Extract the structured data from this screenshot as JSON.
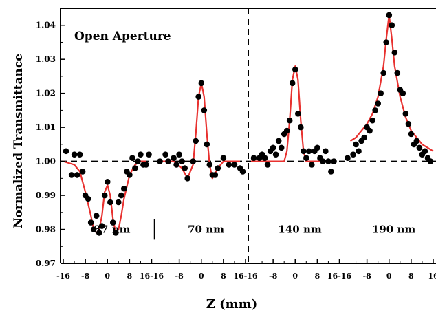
{
  "chart_data": {
    "type": "scatter",
    "title": "Open Aperture",
    "xlabel": "Z (mm)",
    "ylabel": "Normalized Transmittance",
    "ylim": [
      0.97,
      1.045
    ],
    "y_ticks": [
      "0.97",
      "0.98",
      "0.99",
      "1.00",
      "1.01",
      "1.02",
      "1.03",
      "1.04"
    ],
    "x_tick_labels": [
      "-16",
      "-8",
      "0",
      "8",
      "16-16",
      "-8",
      "0",
      "8",
      "16-16",
      "-8",
      "0",
      "8",
      "16-16",
      "-8",
      "0",
      "8",
      "16"
    ],
    "reference_line_y": 1.0,
    "marker_color": "#000000",
    "fit_color": "#e8312f",
    "panels": [
      {
        "name": "37 nm",
        "x": [
          -15,
          -13,
          -12,
          -11,
          -10,
          -9,
          -8,
          -7,
          -6,
          -5,
          -4,
          -3,
          -2,
          -1,
          0,
          1,
          2,
          3,
          4,
          5,
          6,
          7,
          8,
          9,
          10,
          11,
          12,
          13,
          14,
          15
        ],
        "y": [
          1.003,
          0.996,
          1.002,
          0.996,
          1.002,
          0.997,
          0.99,
          0.989,
          0.982,
          0.98,
          0.984,
          0.979,
          0.981,
          0.99,
          0.994,
          0.988,
          0.982,
          0.979,
          0.988,
          0.99,
          0.992,
          0.997,
          0.996,
          1.001,
          0.998,
          1.0,
          1.002,
          0.999,
          0.999,
          1.002
        ],
        "fit_x": [
          -16,
          -12,
          -10,
          -8,
          -6,
          -5,
          -4,
          -3,
          -2,
          -1,
          0,
          1,
          2,
          3,
          4,
          5,
          6,
          8,
          10,
          12,
          14
        ],
        "fit_y": [
          1.0,
          0.999,
          0.997,
          0.991,
          0.984,
          0.98,
          0.979,
          0.98,
          0.984,
          0.991,
          0.993,
          0.99,
          0.983,
          0.979,
          0.98,
          0.984,
          0.989,
          0.996,
          0.999,
          1.0,
          1.0
        ]
      },
      {
        "name": "70 nm",
        "x": [
          -15,
          -13,
          -12,
          -10,
          -9,
          -8,
          -7,
          -6,
          -5,
          -3,
          -2,
          -1,
          0,
          1,
          2,
          3,
          4,
          5,
          6,
          8,
          10,
          12,
          14,
          15
        ],
        "y": [
          1.0,
          1.002,
          1.0,
          1.001,
          0.999,
          1.002,
          1.0,
          0.998,
          0.995,
          1.0,
          1.006,
          1.019,
          1.023,
          1.015,
          1.005,
          0.999,
          0.996,
          0.996,
          0.998,
          1.001,
          0.999,
          0.999,
          0.998,
          0.997
        ],
        "fit_x": [
          -15,
          -10,
          -7,
          -5,
          -3,
          -2,
          -1,
          0,
          1,
          2,
          3,
          4,
          6,
          8,
          10,
          14
        ],
        "fit_y": [
          1.0,
          1.0,
          0.998,
          0.995,
          0.999,
          1.008,
          1.019,
          1.023,
          1.019,
          1.008,
          0.999,
          0.995,
          0.998,
          1.0,
          1.0,
          1.0
        ]
      },
      {
        "name": "140 nm",
        "x": [
          -15,
          -13,
          -12,
          -11,
          -10,
          -9,
          -8,
          -7,
          -6,
          -5,
          -4,
          -3,
          -2,
          -1,
          0,
          1,
          2,
          3,
          4,
          5,
          6,
          7,
          8,
          9,
          10,
          11,
          12,
          13,
          14
        ],
        "y": [
          1.001,
          1.001,
          1.002,
          1.001,
          0.999,
          1.003,
          1.004,
          1.002,
          1.006,
          1.004,
          1.008,
          1.009,
          1.012,
          1.023,
          1.027,
          1.014,
          1.01,
          1.003,
          1.001,
          1.003,
          0.999,
          1.003,
          1.004,
          1.001,
          1.0,
          1.003,
          1.0,
          0.997,
          1.0
        ],
        "fit_x": [
          -16,
          -8,
          -4,
          -3,
          -2,
          -1,
          0,
          1,
          2,
          3,
          4,
          8,
          12
        ],
        "fit_y": [
          1.0,
          1.0,
          1.0,
          1.003,
          1.012,
          1.024,
          1.028,
          1.024,
          1.012,
          1.003,
          1.0,
          1.0,
          1.0
        ]
      },
      {
        "name": "190 nm",
        "x": [
          -15,
          -13,
          -12,
          -11,
          -10,
          -9,
          -8,
          -7,
          -6,
          -5,
          -4,
          -3,
          -2,
          -1,
          0,
          1,
          2,
          3,
          4,
          5,
          6,
          7,
          8,
          9,
          10,
          11,
          12,
          13,
          14,
          15
        ],
        "y": [
          1.001,
          1.002,
          1.005,
          1.003,
          1.006,
          1.007,
          1.01,
          1.009,
          1.012,
          1.015,
          1.017,
          1.02,
          1.026,
          1.035,
          1.043,
          1.04,
          1.032,
          1.026,
          1.021,
          1.02,
          1.014,
          1.011,
          1.008,
          1.005,
          1.006,
          1.004,
          1.002,
          1.003,
          1.001,
          1.0
        ],
        "fit_x": [
          -14,
          -12,
          -10,
          -8,
          -6,
          -4,
          -2,
          -1,
          0,
          1,
          2,
          4,
          6,
          8,
          10,
          12,
          14,
          16
        ],
        "fit_y": [
          1.006,
          1.007,
          1.009,
          1.011,
          1.014,
          1.019,
          1.028,
          1.036,
          1.043,
          1.036,
          1.028,
          1.019,
          1.013,
          1.009,
          1.007,
          1.005,
          1.004,
          1.003
        ]
      }
    ]
  }
}
